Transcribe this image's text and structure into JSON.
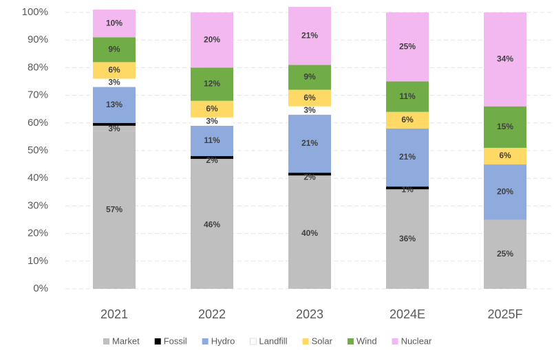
{
  "chart_data": {
    "type": "stacked_bar",
    "categories": [
      "2021",
      "2022",
      "2023",
      "2024E",
      "2025F"
    ],
    "series": [
      {
        "name": "Market",
        "color": "#bfbfbf",
        "values": [
          57,
          46,
          40,
          36,
          25
        ],
        "value_labels": [
          "57%",
          "46%",
          "40%",
          "36%",
          "25%"
        ]
      },
      {
        "name": "Fossil",
        "color": "#000000",
        "values": [
          3,
          2,
          2,
          1,
          null
        ],
        "value_labels": [
          "3%",
          "2%",
          "2%",
          "1%",
          null
        ]
      },
      {
        "name": "Hydro",
        "color": "#8faadc",
        "values": [
          13,
          11,
          21,
          21,
          20
        ],
        "value_labels": [
          "13%",
          "11%",
          "21%",
          "21%",
          "20%"
        ]
      },
      {
        "name": "Landfill",
        "color": "#ffffff",
        "values": [
          3,
          3,
          3,
          null,
          null
        ],
        "value_labels": [
          "3%",
          "3%",
          "3%",
          null,
          null
        ]
      },
      {
        "name": "Solar",
        "color": "#ffd966",
        "values": [
          6,
          6,
          6,
          6,
          6
        ],
        "value_labels": [
          "6%",
          "6%",
          "6%",
          "6%",
          "6%"
        ]
      },
      {
        "name": "Wind",
        "color": "#70ad47",
        "values": [
          9,
          12,
          9,
          11,
          15
        ],
        "value_labels": [
          "9%",
          "12%",
          "9%",
          "11%",
          "15%"
        ]
      },
      {
        "name": "Nuclear",
        "color": "#f4b8f0",
        "values": [
          10,
          20,
          21,
          25,
          34
        ],
        "value_labels": [
          "10%",
          "20%",
          "21%",
          "25%",
          "34%"
        ]
      }
    ],
    "ylim": [
      0,
      100
    ],
    "yticks": [
      {
        "value": 0,
        "label": "0%"
      },
      {
        "value": 10,
        "label": "10%"
      },
      {
        "value": 20,
        "label": "20%"
      },
      {
        "value": 30,
        "label": "30%"
      },
      {
        "value": 40,
        "label": "40%"
      },
      {
        "value": 50,
        "label": "50%"
      },
      {
        "value": 60,
        "label": "60%"
      },
      {
        "value": 70,
        "label": "70%"
      },
      {
        "value": 80,
        "label": "80%"
      },
      {
        "value": 90,
        "label": "90%"
      },
      {
        "value": 100,
        "label": "100%"
      }
    ],
    "grid": true,
    "legend": "bottom"
  }
}
